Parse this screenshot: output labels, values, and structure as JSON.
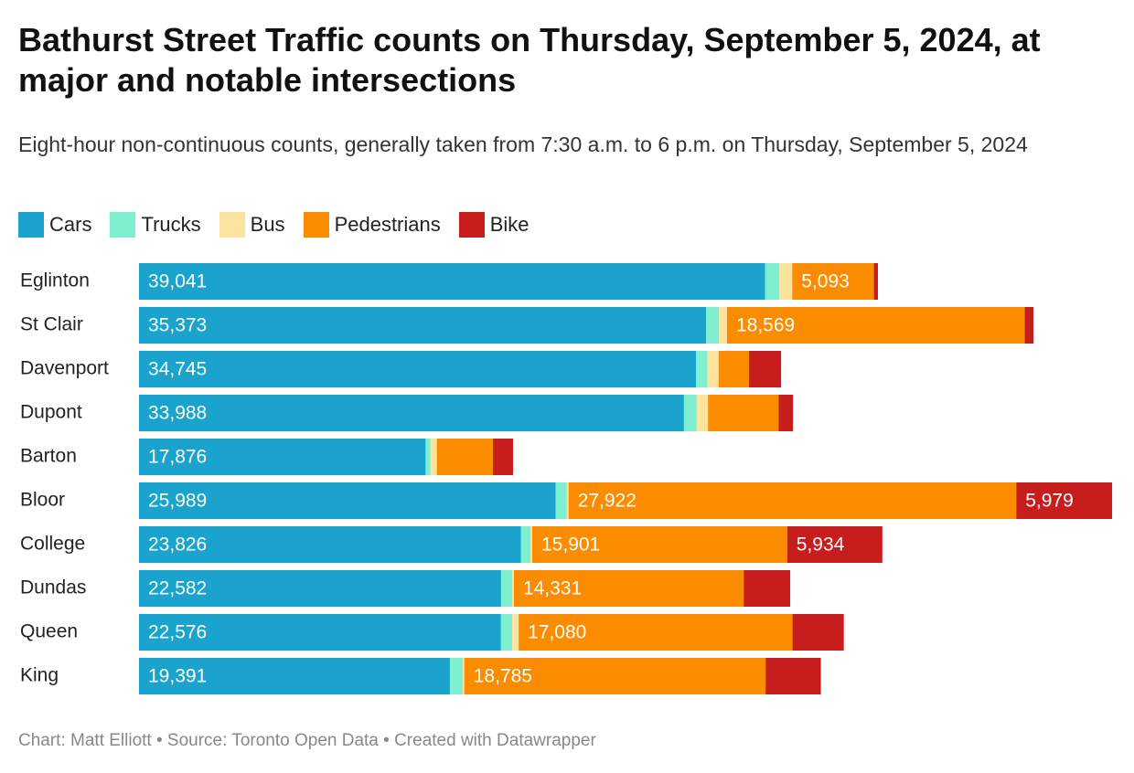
{
  "header": {
    "title": "Bathurst Street Traffic counts on Thursday, September 5, 2024, at major and notable intersections",
    "subtitle": "Eight-hour non-continuous counts, generally taken from 7:30 a.m. to 6 p.m. on Thursday, September 5, 2024"
  },
  "footer": {
    "credit": "Chart: Matt Elliott • Source: Toronto Open Data • Created with Datawrapper"
  },
  "chart_data": {
    "type": "bar",
    "orientation": "horizontal",
    "stacked": true,
    "legend_position": "top-left",
    "grid": false,
    "xlim": [
      0,
      60800
    ],
    "categories": [
      "Eglinton",
      "St Clair",
      "Davenport",
      "Dupont",
      "Barton",
      "Bloor",
      "College",
      "Dundas",
      "Queen",
      "King"
    ],
    "series": [
      {
        "name": "Cars",
        "color": "#1aa3cc",
        "values": [
          39041,
          35373,
          34745,
          33988,
          17876,
          25989,
          23826,
          22582,
          22576,
          19391
        ],
        "labels": [
          "39,041",
          "35,373",
          "34,745",
          "33,988",
          "17,876",
          "25,989",
          "23,826",
          "22,582",
          "22,576",
          "19,391"
        ]
      },
      {
        "name": "Trucks",
        "color": "#7ef0cf",
        "values": [
          900,
          800,
          700,
          800,
          300,
          700,
          600,
          700,
          700,
          800
        ],
        "labels": [
          "",
          "",
          "",
          "",
          "",
          "",
          "",
          "",
          "",
          ""
        ]
      },
      {
        "name": "Bus",
        "color": "#fde49e",
        "values": [
          800,
          500,
          700,
          700,
          400,
          100,
          100,
          100,
          400,
          100
        ],
        "labels": [
          "",
          "",
          "",
          "",
          "",
          "",
          "",
          "",
          "",
          ""
        ]
      },
      {
        "name": "Pedestrians",
        "color": "#fb8c00",
        "values": [
          5093,
          18569,
          1900,
          4400,
          3500,
          27922,
          15901,
          14331,
          17080,
          18785
        ],
        "labels": [
          "5,093",
          "18,569",
          "",
          "",
          "",
          "27,922",
          "15,901",
          "14,331",
          "17,080",
          "18,785"
        ]
      },
      {
        "name": "Bike",
        "color": "#c81d1d",
        "values": [
          250,
          550,
          2000,
          900,
          1250,
          5979,
          5934,
          2900,
          3200,
          3450
        ],
        "labels": [
          "",
          "",
          "",
          "",
          "",
          "5,979",
          "5,934",
          "",
          "",
          ""
        ]
      }
    ]
  }
}
